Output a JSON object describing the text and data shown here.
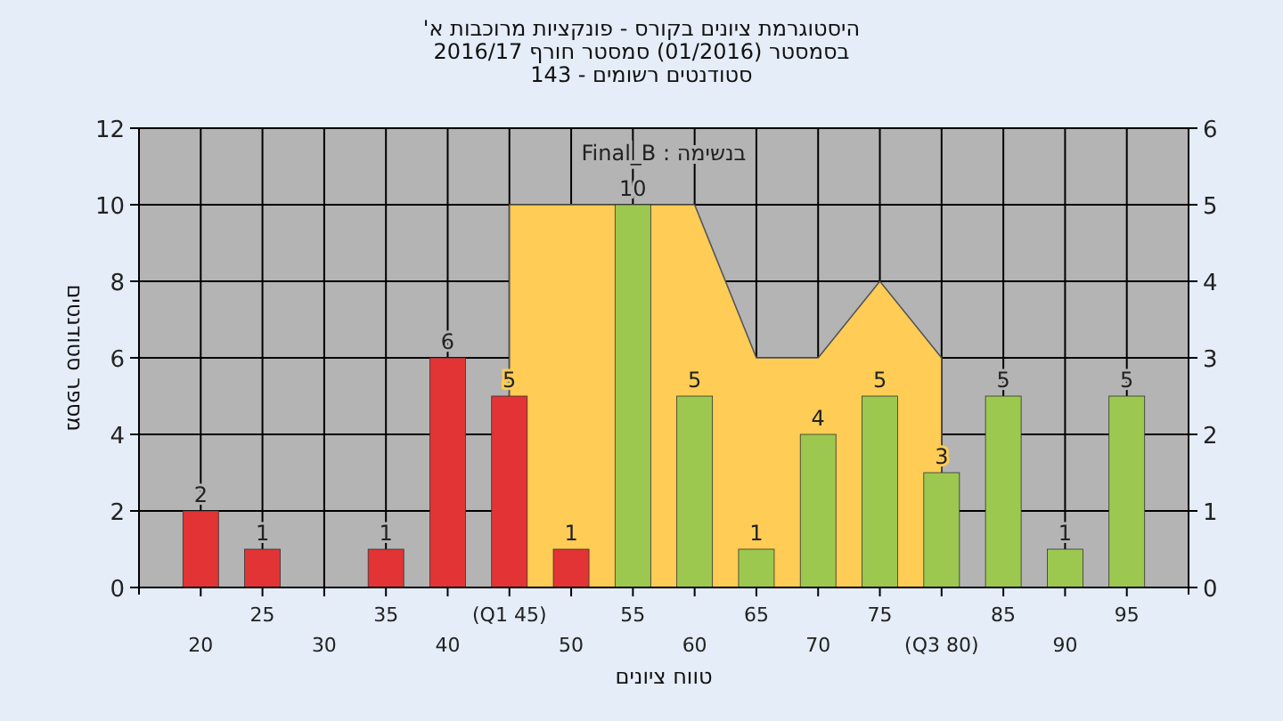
{
  "chart_data": {
    "type": "bar",
    "title": "היסטוגרמת ציונים בקורס - פונקציות מרוכבות א'",
    "subtitle": "בסמסטר (01/2016) סמסטר חורף 2016/17\nסטודנטים רשומים - 143",
    "xlabel": "טווח ציונים",
    "ylabel": "מספר סטודנטים",
    "annotations": [
      "בנשימה : Final_B"
    ],
    "categories": [
      "20",
      "25",
      "30",
      "35",
      "40",
      "(Q1 45)",
      "50",
      "55",
      "60",
      "65",
      "70",
      "75",
      "(Q3 80)",
      "85",
      "90",
      "95"
    ],
    "series": [
      {
        "type": "area",
        "axis": "y2",
        "color": "#ffcc55",
        "values": [
          null,
          null,
          null,
          null,
          null,
          5,
          5,
          5,
          5,
          3,
          3,
          4,
          3,
          null,
          null,
          null
        ]
      },
      {
        "colors": [
          "#e23434",
          "#e23434",
          "#e23434",
          "#e23434",
          "#e23434",
          "#e23434",
          "#e23434",
          "#9cc850",
          "#9cc850",
          "#9cc850",
          "#9cc850",
          "#9cc850",
          "#9cc850",
          "#9cc850",
          "#9cc850",
          "#9cc850"
        ],
        "values": [
          2,
          1,
          null,
          1,
          6,
          5,
          1,
          10,
          5,
          1,
          4,
          5,
          3,
          5,
          1,
          5
        ],
        "value_labels": [
          "2",
          "1",
          null,
          "1",
          "6",
          "5",
          "1",
          "10",
          "5",
          "1",
          "4",
          "5",
          "3",
          "5",
          "1",
          "5"
        ]
      }
    ],
    "ylim": [
      0,
      12
    ],
    "yticks": [
      0,
      2,
      4,
      6,
      8,
      10,
      12
    ],
    "y2lim": [
      0,
      6
    ],
    "y2ticks": [
      0,
      1,
      2,
      3,
      4,
      5,
      6
    ],
    "grid": true
  }
}
